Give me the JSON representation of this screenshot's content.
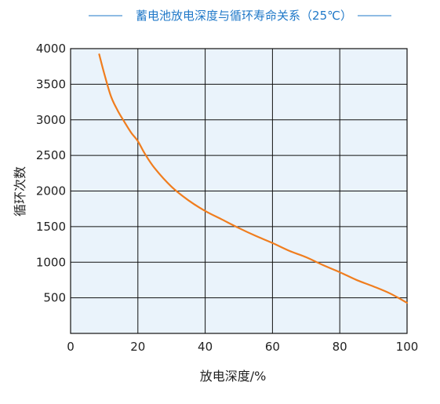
{
  "chart_data": {
    "type": "line",
    "title": "蓄电池放电深度与循环寿命关系（25℃）",
    "xlabel": "放电深度/%",
    "ylabel": "循环次数",
    "xlim": [
      0,
      100
    ],
    "ylim": [
      0,
      4000
    ],
    "x_ticks": [
      "0",
      "20",
      "40",
      "60",
      "80",
      "100"
    ],
    "y_ticks": [
      "500",
      "1000",
      "1500",
      "2000",
      "2500",
      "3000",
      "3500",
      "4000"
    ],
    "grid": true,
    "series": [
      {
        "x": [
          8.5,
          10,
          12,
          14,
          16,
          18,
          20,
          22,
          25,
          30,
          35,
          40,
          45,
          50,
          55,
          60,
          65,
          70,
          75,
          80,
          85,
          90,
          95,
          100
        ],
        "y": [
          3920,
          3650,
          3330,
          3130,
          2970,
          2820,
          2700,
          2530,
          2320,
          2060,
          1870,
          1720,
          1600,
          1480,
          1370,
          1270,
          1160,
          1070,
          960,
          860,
          750,
          660,
          560,
          430
        ]
      }
    ]
  },
  "colors": {
    "title": "#1f78c8",
    "plot_background": "#eaf3fb",
    "grid": "#111111",
    "line": "#f07d1e"
  }
}
